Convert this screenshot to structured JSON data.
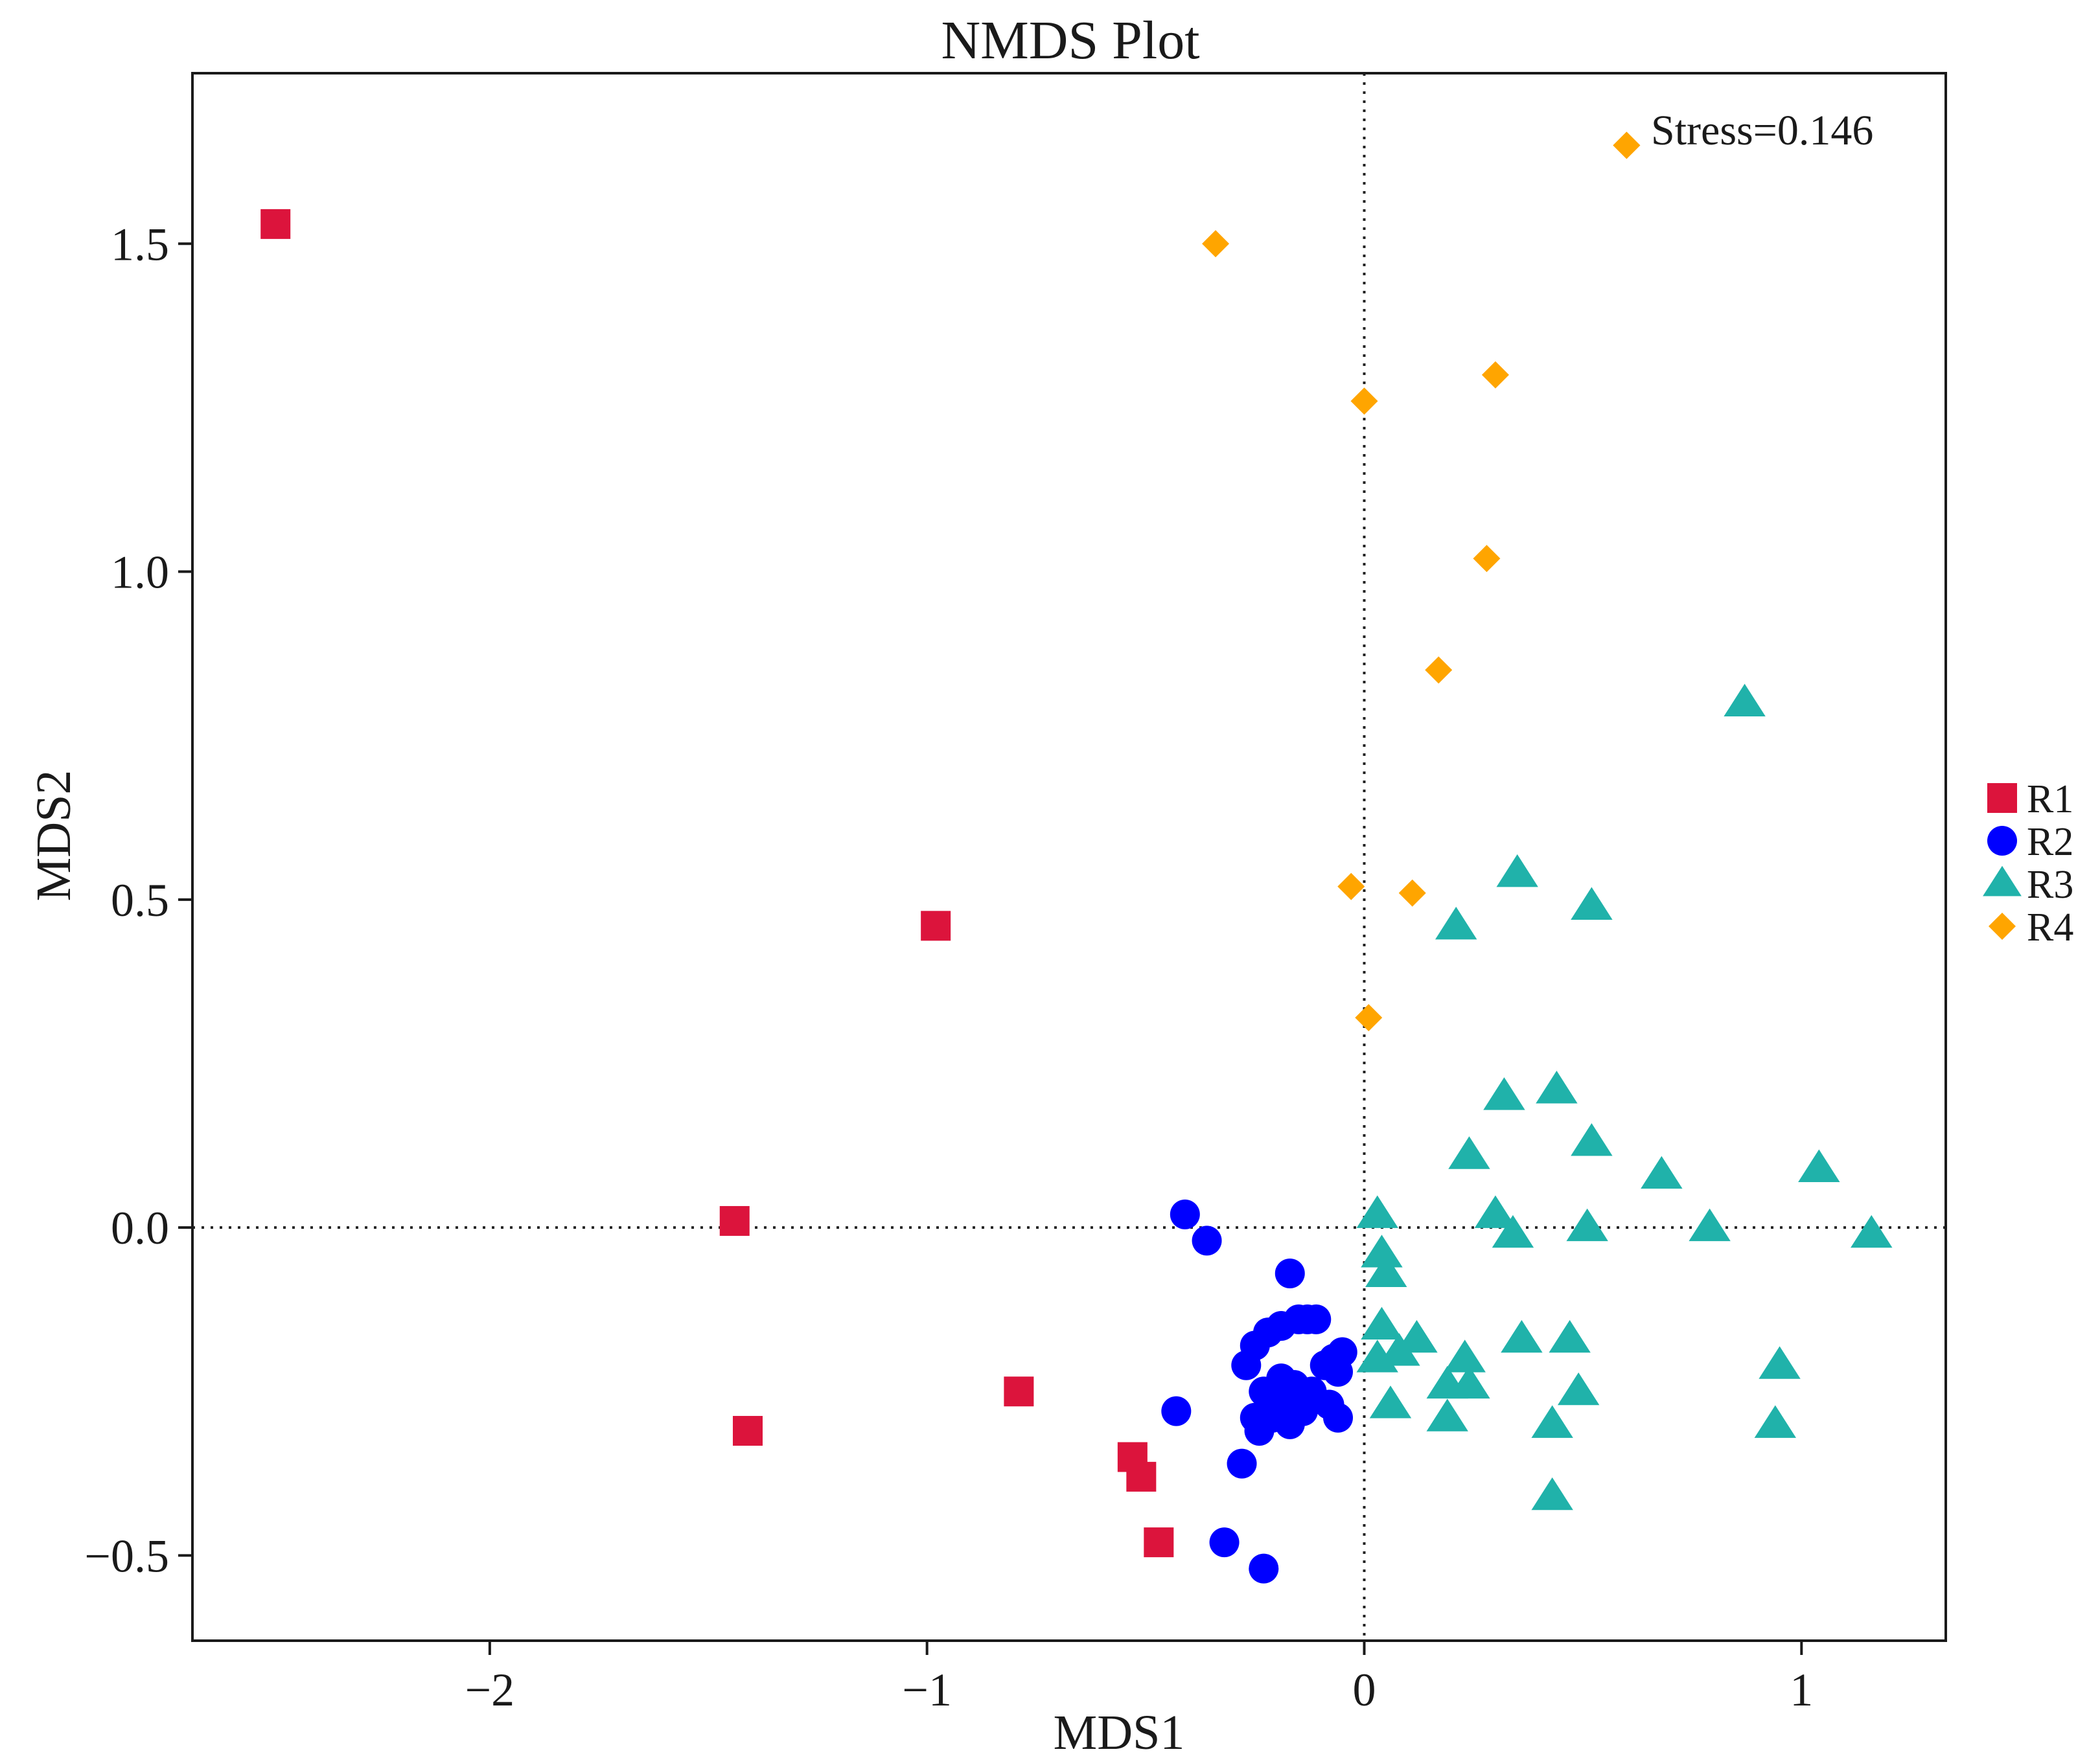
{
  "chart_data": {
    "type": "scatter",
    "title": "NMDS Plot",
    "xlabel": "MDS1",
    "ylabel": "MDS2",
    "xlim": [
      -2.68,
      1.33
    ],
    "ylim": [
      -0.63,
      1.76
    ],
    "x_ticks": [
      -2,
      -1,
      0,
      1
    ],
    "y_ticks": [
      -0.5,
      0.0,
      0.5,
      1.0,
      1.5
    ],
    "x_tick_labels": [
      "−2",
      "−1",
      "0",
      "1"
    ],
    "y_tick_labels": [
      "−0.5",
      "0.0",
      "0.5",
      "1.0",
      "1.5"
    ],
    "reference_lines": {
      "x": 0,
      "y": 0,
      "style": "dotted"
    },
    "annotation": "Stress=0.146",
    "legend_position": "right",
    "series": [
      {
        "name": "R1",
        "marker": "square",
        "color": "#DC143C",
        "points": [
          [
            -2.49,
            1.53
          ],
          [
            -0.98,
            0.46
          ],
          [
            -1.44,
            0.01
          ],
          [
            -0.79,
            -0.25
          ],
          [
            -1.41,
            -0.31
          ],
          [
            -0.53,
            -0.35
          ],
          [
            -0.51,
            -0.38
          ],
          [
            -0.47,
            -0.48
          ]
        ]
      },
      {
        "name": "R2",
        "marker": "circle",
        "color": "#0000FF",
        "points": [
          [
            -0.41,
            0.02
          ],
          [
            -0.36,
            -0.02
          ],
          [
            -0.17,
            -0.07
          ],
          [
            -0.13,
            -0.14
          ],
          [
            -0.11,
            -0.14
          ],
          [
            -0.19,
            -0.15
          ],
          [
            -0.15,
            -0.14
          ],
          [
            -0.25,
            -0.18
          ],
          [
            -0.22,
            -0.16
          ],
          [
            -0.05,
            -0.19
          ],
          [
            -0.07,
            -0.2
          ],
          [
            -0.27,
            -0.21
          ],
          [
            -0.09,
            -0.21
          ],
          [
            -0.06,
            -0.22
          ],
          [
            -0.19,
            -0.23
          ],
          [
            -0.23,
            -0.25
          ],
          [
            -0.16,
            -0.24
          ],
          [
            -0.12,
            -0.25
          ],
          [
            -0.2,
            -0.27
          ],
          [
            -0.15,
            -0.27
          ],
          [
            -0.21,
            -0.29
          ],
          [
            -0.08,
            -0.27
          ],
          [
            -0.06,
            -0.29
          ],
          [
            -0.17,
            -0.3
          ],
          [
            -0.24,
            -0.31
          ],
          [
            -0.43,
            -0.28
          ],
          [
            -0.28,
            -0.36
          ],
          [
            -0.32,
            -0.48
          ],
          [
            -0.23,
            -0.52
          ],
          [
            -0.14,
            -0.28
          ],
          [
            -0.25,
            -0.29
          ]
        ]
      },
      {
        "name": "R3",
        "marker": "triangle",
        "color": "#20B2AA",
        "points": [
          [
            0.87,
            0.8
          ],
          [
            0.35,
            0.54
          ],
          [
            0.52,
            0.49
          ],
          [
            0.21,
            0.46
          ],
          [
            0.32,
            0.2
          ],
          [
            0.44,
            0.21
          ],
          [
            0.52,
            0.13
          ],
          [
            0.24,
            0.11
          ],
          [
            0.68,
            0.08
          ],
          [
            1.04,
            0.09
          ],
          [
            0.3,
            0.02
          ],
          [
            0.51,
            0.0
          ],
          [
            0.79,
            0.0
          ],
          [
            1.16,
            -0.01
          ],
          [
            0.34,
            -0.01
          ],
          [
            0.03,
            0.02
          ],
          [
            0.04,
            -0.04
          ],
          [
            0.05,
            -0.07
          ],
          [
            0.04,
            -0.15
          ],
          [
            0.12,
            -0.17
          ],
          [
            0.08,
            -0.19
          ],
          [
            0.36,
            -0.17
          ],
          [
            0.47,
            -0.17
          ],
          [
            0.03,
            -0.2
          ],
          [
            0.06,
            -0.27
          ],
          [
            0.23,
            -0.2
          ],
          [
            0.19,
            -0.24
          ],
          [
            0.24,
            -0.24
          ],
          [
            0.49,
            -0.25
          ],
          [
            0.19,
            -0.29
          ],
          [
            0.43,
            -0.3
          ],
          [
            0.95,
            -0.21
          ],
          [
            0.94,
            -0.3
          ],
          [
            0.43,
            -0.41
          ]
        ]
      },
      {
        "name": "R4",
        "marker": "diamond",
        "color": "#FFA500",
        "points": [
          [
            0.6,
            1.65
          ],
          [
            -0.34,
            1.5
          ],
          [
            0.3,
            1.3
          ],
          [
            0.0,
            1.26
          ],
          [
            0.28,
            1.02
          ],
          [
            0.17,
            0.85
          ],
          [
            -0.03,
            0.52
          ],
          [
            0.11,
            0.51
          ],
          [
            0.01,
            0.32
          ]
        ]
      }
    ]
  }
}
